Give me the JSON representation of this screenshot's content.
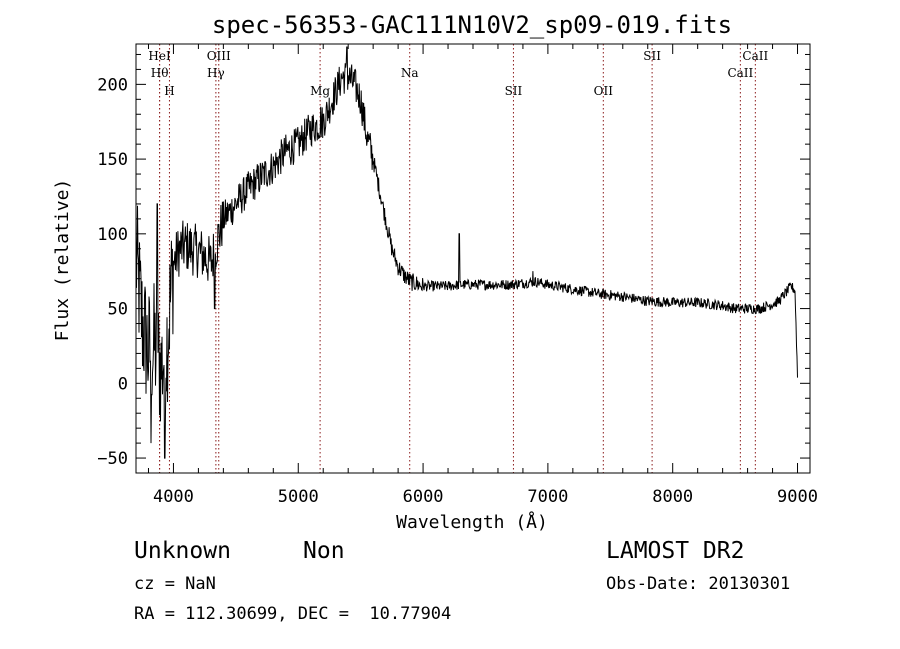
{
  "chart_data": {
    "type": "line",
    "title": "spec-56353-GAC111N10V2_sp09-019.fits",
    "xlabel": "Wavelength (Å)",
    "ylabel": "Flux (relative)",
    "xlim": [
      3700,
      9100
    ],
    "ylim": [
      -60,
      227
    ],
    "x_ticks": [
      4000,
      5000,
      6000,
      7000,
      8000,
      9000
    ],
    "x_tick_labels": [
      "4000",
      "5000",
      "6000",
      "7000",
      "8000",
      "9000"
    ],
    "y_ticks": [
      -50,
      0,
      50,
      100,
      150,
      200
    ],
    "y_tick_labels": [
      "−50",
      "0",
      "50",
      "100",
      "150",
      "200"
    ],
    "grid": false,
    "line_color": "#000000",
    "marker_color": "#8b1a1a",
    "spectrum_anchors": {
      "x": [
        3700,
        3750,
        3800,
        3850,
        3900,
        3950,
        4000,
        4050,
        4100,
        4150,
        4200,
        4250,
        4300,
        4350,
        4400,
        4500,
        4600,
        4700,
        4800,
        4900,
        5000,
        5100,
        5200,
        5300,
        5350,
        5400,
        5450,
        5500,
        5550,
        5600,
        5650,
        5700,
        5750,
        5800,
        5850,
        5900,
        6000,
        6200,
        6300,
        6500,
        6700,
        6900,
        7000,
        7200,
        7400,
        7600,
        7800,
        8000,
        8200,
        8400,
        8500,
        8600,
        8700,
        8800,
        8850,
        8900,
        8950,
        8980,
        9000
      ],
      "y": [
        85,
        40,
        20,
        25,
        10,
        30,
        80,
        90,
        92,
        90,
        88,
        85,
        80,
        95,
        110,
        120,
        130,
        138,
        145,
        155,
        160,
        170,
        175,
        195,
        205,
        205,
        200,
        190,
        165,
        150,
        130,
        110,
        90,
        78,
        72,
        68,
        65,
        65,
        66,
        66,
        66,
        68,
        66,
        63,
        60,
        58,
        55,
        54,
        54,
        52,
        50,
        50,
        50,
        53,
        55,
        60,
        65,
        62,
        5
      ]
    },
    "spikes": [
      {
        "x": 3820,
        "y": -40
      },
      {
        "x": 3870,
        "y": 120
      },
      {
        "x": 3930,
        "y": -50
      },
      {
        "x": 4330,
        "y": 50
      },
      {
        "x": 5180,
        "y": 185
      },
      {
        "x": 5390,
        "y": 225
      },
      {
        "x": 6290,
        "y": 100
      },
      {
        "x": 6880,
        "y": 75
      }
    ],
    "lines": [
      {
        "wavelength": 3889,
        "label": "HeI",
        "row": 0
      },
      {
        "wavelength": 3889,
        "label": "Hθ",
        "row": 1
      },
      {
        "wavelength": 3968,
        "label": "H",
        "row": 2
      },
      {
        "wavelength": 4363,
        "label": "OIII",
        "row": 0
      },
      {
        "wavelength": 4340,
        "label": "Hγ",
        "row": 1
      },
      {
        "wavelength": 5175,
        "label": "Mg",
        "row": 2
      },
      {
        "wavelength": 5893,
        "label": "Na",
        "row": 1
      },
      {
        "wavelength": 6724,
        "label": "SII",
        "row": 2
      },
      {
        "wavelength": 7444,
        "label": "OII",
        "row": 2
      },
      {
        "wavelength": 7835,
        "label": "SII",
        "row": 0
      },
      {
        "wavelength": 8542,
        "label": "CaII",
        "row": 1
      },
      {
        "wavelength": 8662,
        "label": "CaII",
        "row": 0
      }
    ]
  },
  "info": {
    "object_class": "Unknown",
    "subclass": "Non",
    "survey": "LAMOST DR2",
    "cz": "cz = NaN",
    "obs_date": "Obs-Date: 20130301",
    "coords": "RA = 112.30699, DEC =  10.77904"
  }
}
